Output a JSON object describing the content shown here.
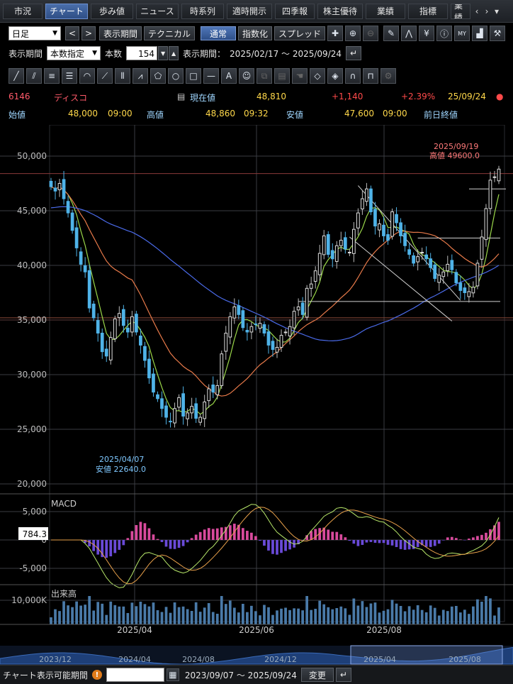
{
  "tabs": [
    {
      "label": "市況",
      "active": false
    },
    {
      "label": "チャート",
      "active": true
    },
    {
      "label": "歩み値",
      "active": false
    },
    {
      "label": "ニュース",
      "active": false
    },
    {
      "label": "時系列",
      "active": false
    },
    {
      "label": "適時開示",
      "active": false
    },
    {
      "label": "四季報",
      "active": false
    },
    {
      "label": "株主優待",
      "active": false
    },
    {
      "label": "業績",
      "active": false
    },
    {
      "label": "指標",
      "active": false
    },
    {
      "label": "業績",
      "active": false
    }
  ],
  "toolbar1": {
    "period_select": "日足",
    "prev": "<",
    "next": ">",
    "display_period": "表示期間",
    "technical": "テクニカル",
    "normal": "通常",
    "index": "指数化",
    "spread": "スプレッド",
    "icons": [
      "crosshair-icon",
      "zoom-in-icon",
      "zoom-out-icon",
      "pen-icon",
      "chart-mark-icon",
      "yen-icon",
      "info-icon",
      "my-chart-icon",
      "area-chart-icon",
      "wrench-icon"
    ]
  },
  "toolbar2": {
    "period_label": "表示期間",
    "period_mode": "本数指定",
    "count_label": "本数",
    "count_value": "154",
    "range_label": "表示期間：",
    "range_value": "2025/02/17 ～ 2025/09/24"
  },
  "quote": {
    "code": "6146",
    "name": "ディスコ",
    "current_label": "現在値",
    "current_value": "48,810",
    "change": "+1,140",
    "change_pct": "+2.39%",
    "date": "25/09/24",
    "open_label": "始値",
    "open_value": "48,000",
    "open_time": "09:00",
    "high_label": "高値",
    "high_value": "48,860",
    "high_time": "09:32",
    "low_label": "安値",
    "low_value": "47,600",
    "low_time": "09:00",
    "prev_close_label": "前日終値"
  },
  "chart_data": {
    "type": "candlestick",
    "price_axis": {
      "min": 20000,
      "max": 50000,
      "ticks": [
        "50,000",
        "45,000",
        "40,000",
        "35,000",
        "30,000",
        "25,000",
        "20,000"
      ]
    },
    "x_ticks": [
      "2025/04",
      "2025/06",
      "2025/08"
    ],
    "annotations": [
      {
        "date": "2025/09/19",
        "text": "高値 49600.0"
      },
      {
        "date": "2025/04/07",
        "text": "安値 22640.0"
      }
    ],
    "close": [
      47200,
      46800,
      47500,
      46100,
      44800,
      43200,
      41600,
      40100,
      39400,
      36100,
      35200,
      33800,
      32100,
      31700,
      33400,
      35100,
      35600,
      34500,
      33900,
      35300,
      33900,
      32700,
      31300,
      29700,
      28400,
      27800,
      26900,
      26100,
      25700,
      26900,
      27900,
      26200,
      26500,
      27100,
      26000,
      26100,
      27500,
      28700,
      28400,
      29000,
      31900,
      33800,
      35300,
      36200,
      35500,
      34300,
      33900,
      34400,
      34600,
      34700,
      33800,
      32700,
      32300,
      32500,
      33600,
      33900,
      34400,
      35800,
      36200,
      35500,
      37900,
      38300,
      39500,
      41100,
      42700,
      41000,
      40600,
      41800,
      42300,
      41500,
      41200,
      43300,
      44800,
      46100,
      47000,
      44900,
      43600,
      43800,
      42700,
      42300,
      44900,
      43900,
      42700,
      41800,
      41000,
      40200,
      40800,
      41200,
      40600,
      39800,
      38800,
      39100,
      39400,
      40100,
      39600,
      38400,
      37700,
      37500,
      37600,
      38000,
      40200,
      42600,
      45200,
      47800,
      48100,
      48810
    ],
    "macd": {
      "label": "MACD",
      "axis_ticks": [
        "5,000",
        "0",
        "-5,000"
      ],
      "current_value": "784.3"
    },
    "volume": {
      "label": "出来高",
      "axis_ticks": [
        "10,000K"
      ]
    },
    "overview": {
      "ticks": [
        "2023/12",
        "2024/04",
        "2024/08",
        "2024/12",
        "2025/04",
        "2025/08"
      ]
    }
  },
  "footer": {
    "label": "チャート表示可能期間",
    "warn": "!",
    "range": "2023/09/07 ～ 2025/09/24",
    "change_button": "変更"
  },
  "colors": {
    "up": "#ffffff",
    "down": "#4fb3e8",
    "ma_short": "#9bd84a",
    "ma_mid": "#e87a4a",
    "ma_long": "#4a6ae8",
    "macd_hist_pos": "#d84a9c",
    "macd_hist_neg": "#6a4ad8"
  }
}
